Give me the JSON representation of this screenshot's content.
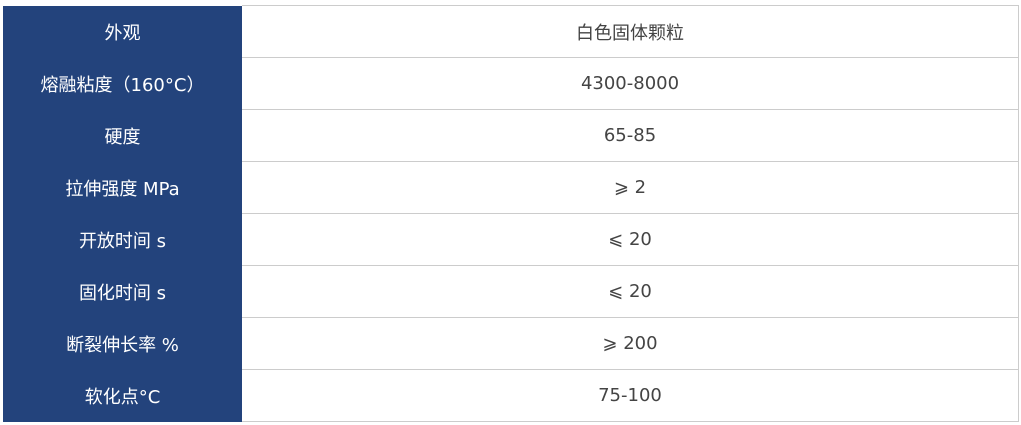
{
  "colors": {
    "header_bg": "#23437c",
    "header_text": "#ffffff",
    "value_text": "#444444",
    "border": "#cccccc"
  },
  "rows": [
    {
      "label": "外观",
      "value": "白色固体颗粒"
    },
    {
      "label": "熔融粘度（160°C）",
      "value": "4300-8000"
    },
    {
      "label": "硬度",
      "value": "65-85"
    },
    {
      "label": "拉伸强度 MPa",
      "value": "⩾ 2"
    },
    {
      "label": "开放时间 s",
      "value": "⩽ 20"
    },
    {
      "label": "固化时间 s",
      "value": "⩽ 20"
    },
    {
      "label": "断裂伸长率 %",
      "value": "⩾ 200"
    },
    {
      "label": "软化点°C",
      "value": "75-100"
    }
  ]
}
